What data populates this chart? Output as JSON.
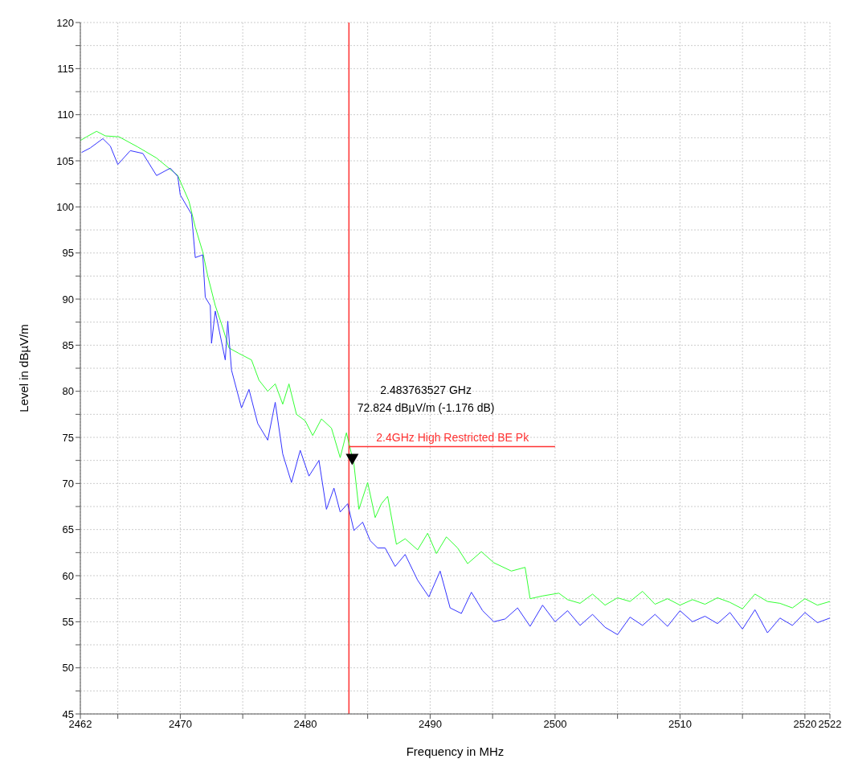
{
  "chart_data": {
    "type": "line",
    "xlabel": "Frequency in MHz",
    "ylabel": "Level in dBµV/m",
    "xlim": [
      2462,
      2522
    ],
    "ylim": [
      45,
      120
    ],
    "xticks": [
      2462,
      {
        "value": 2465,
        "label": null
      },
      2470,
      {
        "value": 2475,
        "label": null
      },
      2480,
      {
        "value": 2485,
        "label": null
      },
      2490,
      {
        "value": 2495,
        "label": null
      },
      2500,
      {
        "value": 2505,
        "label": null
      },
      2510,
      {
        "value": 2515,
        "label": null
      },
      2520,
      2522
    ],
    "yticks": [
      45,
      {
        "value": 47.5,
        "label": null
      },
      50,
      {
        "value": 52.5,
        "label": null
      },
      55,
      {
        "value": 57.5,
        "label": null
      },
      60,
      {
        "value": 62.5,
        "label": null
      },
      65,
      {
        "value": 67.5,
        "label": null
      },
      70,
      {
        "value": 72.5,
        "label": null
      },
      75,
      {
        "value": 77.5,
        "label": null
      },
      80,
      {
        "value": 82.5,
        "label": null
      },
      85,
      {
        "value": 87.5,
        "label": null
      },
      90,
      {
        "value": 92.5,
        "label": null
      },
      95,
      {
        "value": 97.5,
        "label": null
      },
      100,
      {
        "value": 102.5,
        "label": null
      },
      105,
      {
        "value": 107.5,
        "label": null
      },
      110,
      {
        "value": 112.5,
        "label": null
      },
      115,
      {
        "value": 117.5,
        "label": null
      },
      120
    ],
    "grid": true,
    "marker": "none",
    "line_style": "solid",
    "legend": false,
    "series": [
      {
        "color": "#33ff33",
        "x": [
          2462,
          2462.5,
          2463.3,
          2464,
          2465.1,
          2466.6,
          2468.1,
          2469.8,
          2470.7,
          2471.2,
          2471.8,
          2472.2,
          2472.8,
          2473.3,
          2473.9,
          2474.7,
          2475.7,
          2476.3,
          2477,
          2477.6,
          2478.2,
          2478.7,
          2479.3,
          2480,
          2480.6,
          2481.3,
          2482.1,
          2482.8,
          2483.3,
          2483.9,
          2484.3,
          2485,
          2485.6,
          2486.1,
          2486.6,
          2487.3,
          2488,
          2489,
          2489.8,
          2490.5,
          2491.3,
          2492.2,
          2493,
          2494.1,
          2495.1,
          2496.5,
          2497.6,
          2498,
          2499,
          2500.3,
          2501,
          2502,
          2503,
          2504,
          2505,
          2506,
          2507,
          2508,
          2509,
          2510,
          2511,
          2512,
          2513,
          2514,
          2515,
          2516,
          2517,
          2518,
          2519,
          2520,
          2521,
          2522
        ],
        "values": [
          107.2,
          107.6,
          108.2,
          107.7,
          107.6,
          106.5,
          105.3,
          103.4,
          100.6,
          97.8,
          95.1,
          92.5,
          89.3,
          87.3,
          84.7,
          84.1,
          83.4,
          81.2,
          80,
          80.8,
          78.6,
          80.8,
          77.5,
          76.8,
          75.2,
          77,
          76,
          72.8,
          75.5,
          72.1,
          67.2,
          70.1,
          66.3,
          67.8,
          68.6,
          63.4,
          64,
          62.8,
          64.6,
          62.4,
          64.2,
          63,
          61.3,
          62.6,
          61.4,
          60.5,
          60.9,
          57.5,
          57.8,
          58.1,
          57.4,
          57.0,
          58.0,
          56.8,
          57.6,
          57.2,
          58.3,
          56.9,
          57.5,
          56.8,
          57.4,
          56.9,
          57.6,
          57.1,
          56.4,
          58.0,
          57.2,
          57.0,
          56.5,
          57.5,
          56.8,
          57.2
        ]
      },
      {
        "color": "#3333ff",
        "x": [
          2462.1,
          2462.8,
          2463.8,
          2464.4,
          2465,
          2466,
          2467,
          2468.1,
          2469.2,
          2469.8,
          2470,
          2470.9,
          2471.2,
          2471.8,
          2472,
          2472.4,
          2472.5,
          2472.8,
          2473.6,
          2473.8,
          2474.1,
          2474.9,
          2475.5,
          2476.2,
          2477,
          2477.6,
          2478.2,
          2478.9,
          2479.6,
          2480.3,
          2481.1,
          2481.7,
          2482.3,
          2482.8,
          2483.4,
          2483.9,
          2484.6,
          2485.2,
          2485.8,
          2486.4,
          2487.2,
          2488,
          2489,
          2489.9,
          2490.8,
          2491.6,
          2492.5,
          2493.3,
          2494.2,
          2495.1,
          2496,
          2497,
          2498,
          2499,
          2500,
          2501,
          2502,
          2503,
          2504,
          2505,
          2506,
          2507,
          2508,
          2509,
          2510,
          2511,
          2512,
          2513,
          2514,
          2515,
          2516,
          2517,
          2518,
          2519,
          2520,
          2521,
          2522
        ],
        "values": [
          105.9,
          106.4,
          107.4,
          106.6,
          104.6,
          106.1,
          105.8,
          103.4,
          104.2,
          103.3,
          101.3,
          99.2,
          94.5,
          94.8,
          90.2,
          89.3,
          85.2,
          88.7,
          83.4,
          87.6,
          82.3,
          78.2,
          80.2,
          76.5,
          74.7,
          78.8,
          73.2,
          70.1,
          73.6,
          70.8,
          72.5,
          67.2,
          69.5,
          66.9,
          67.8,
          64.9,
          65.8,
          63.8,
          63,
          63,
          61,
          62.3,
          59.5,
          57.7,
          60.5,
          56.5,
          55.9,
          58.2,
          56.2,
          55,
          55.3,
          56.5,
          54.5,
          56.8,
          55,
          56.2,
          54.6,
          55.8,
          54.4,
          53.6,
          55.5,
          54.6,
          55.8,
          54.5,
          56.2,
          55,
          55.6,
          54.8,
          56,
          54.2,
          56.3,
          53.8,
          55.4,
          54.6,
          56,
          54.9,
          55.4
        ]
      },
      {
        "type": "line",
        "name": "2.4GHz High Restricted BE Pk",
        "color": "#ff3333",
        "x": [
          2483.5,
          2500
        ],
        "values": [
          74,
          74
        ]
      },
      {
        "type": "scatter",
        "marker": "triangle",
        "color": "#000000",
        "x": [
          2483.76
        ],
        "values": [
          72.8
        ]
      }
    ],
    "ref_lines": [
      {
        "axis": "x",
        "value": 2483.5,
        "color": "#ff3333"
      }
    ],
    "annotations": [
      "2.483763527 GHz",
      "72.824 dBµV/m (-1.176 dB)"
    ]
  }
}
